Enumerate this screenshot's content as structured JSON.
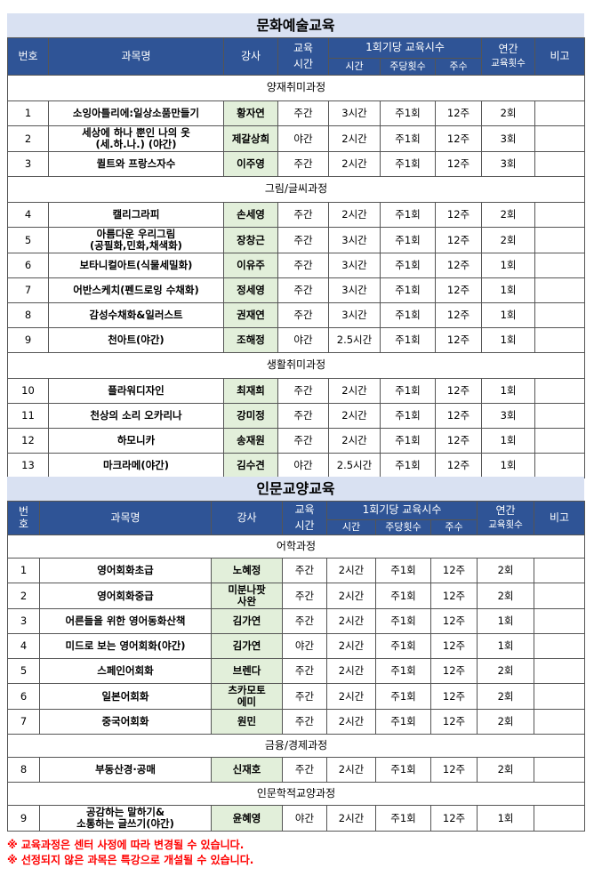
{
  "headers": {
    "no": "번호",
    "no_split": [
      "번",
      "호"
    ],
    "course": "과목명",
    "instructor": "강사",
    "edu_time": [
      "교육",
      "시간"
    ],
    "per_session": "1회기당 교육시수",
    "hours": "시간",
    "weekly": "주당횟수",
    "weeks": "주수",
    "annual": "연간",
    "annual_count": "교육횟수",
    "remarks": "비고"
  },
  "sections": [
    {
      "title": "문화예술교육",
      "groups": [
        {
          "category": "양재취미과정",
          "rows": [
            {
              "no": "1",
              "course": [
                "소잉아틀리에:일상소품만들기"
              ],
              "instructor": [
                "황자연"
              ],
              "time": "주간",
              "hours": "3시간",
              "weekly": "주1회",
              "weeks": "12주",
              "annual": "2회"
            },
            {
              "no": "2",
              "course": [
                "세상에 하나 뿐인 나의 옷",
                "(세.하.나.) (야간)"
              ],
              "instructor": [
                "제갈상희"
              ],
              "time": "야간",
              "hours": "2시간",
              "weekly": "주1회",
              "weeks": "12주",
              "annual": "3회"
            },
            {
              "no": "3",
              "course": [
                "퀼트와 프랑스자수"
              ],
              "instructor": [
                "이주영"
              ],
              "time": "주간",
              "hours": "2시간",
              "weekly": "주1회",
              "weeks": "12주",
              "annual": "3회"
            }
          ]
        },
        {
          "category": "그림/글씨과정",
          "rows": [
            {
              "no": "4",
              "course": [
                "캘리그라피"
              ],
              "instructor": [
                "손세영"
              ],
              "time": "주간",
              "hours": "2시간",
              "weekly": "주1회",
              "weeks": "12주",
              "annual": "2회"
            },
            {
              "no": "5",
              "course": [
                "아름다운 우리그림",
                "(공필화,민화,채색화)"
              ],
              "instructor": [
                "장창근"
              ],
              "time": "주간",
              "hours": "3시간",
              "weekly": "주1회",
              "weeks": "12주",
              "annual": "2회"
            },
            {
              "no": "6",
              "course": [
                "보타니컬아트(식물세밀화)"
              ],
              "instructor": [
                "이유주"
              ],
              "time": "주간",
              "hours": "3시간",
              "weekly": "주1회",
              "weeks": "12주",
              "annual": "1회"
            },
            {
              "no": "7",
              "course": [
                "어반스케치(펜드로잉 수채화)"
              ],
              "instructor": [
                "정세영"
              ],
              "time": "주간",
              "hours": "3시간",
              "weekly": "주1회",
              "weeks": "12주",
              "annual": "1회"
            },
            {
              "no": "8",
              "course": [
                "감성수채화&일러스트"
              ],
              "instructor": [
                "권재연"
              ],
              "time": "주간",
              "hours": "3시간",
              "weekly": "주1회",
              "weeks": "12주",
              "annual": "1회"
            },
            {
              "no": "9",
              "course": [
                "천아트(야간)"
              ],
              "instructor": [
                "조해정"
              ],
              "time": "야간",
              "hours": "2.5시간",
              "weekly": "주1회",
              "weeks": "12주",
              "annual": "1회"
            }
          ]
        },
        {
          "category": "생활취미과정",
          "rows": [
            {
              "no": "10",
              "course": [
                "플라워디자인"
              ],
              "instructor": [
                "최재희"
              ],
              "time": "주간",
              "hours": "2시간",
              "weekly": "주1회",
              "weeks": "12주",
              "annual": "1회"
            },
            {
              "no": "11",
              "course": [
                "천상의 소리 오카리나"
              ],
              "instructor": [
                "강미정"
              ],
              "time": "주간",
              "hours": "2시간",
              "weekly": "주1회",
              "weeks": "12주",
              "annual": "3회"
            },
            {
              "no": "12",
              "course": [
                "하모니카"
              ],
              "instructor": [
                "송재원"
              ],
              "time": "주간",
              "hours": "2시간",
              "weekly": "주1회",
              "weeks": "12주",
              "annual": "1회"
            },
            {
              "no": "13",
              "course": [
                "마크라메(야간)"
              ],
              "instructor": [
                "김수견"
              ],
              "time": "야간",
              "hours": "2.5시간",
              "weekly": "주1회",
              "weeks": "12주",
              "annual": "1회"
            }
          ]
        }
      ]
    },
    {
      "title": "인문교양교육",
      "groups": [
        {
          "category": "어학과정",
          "rows": [
            {
              "no": "1",
              "course": [
                "영어회화초급"
              ],
              "instructor": [
                "노혜정"
              ],
              "time": "주간",
              "hours": "2시간",
              "weekly": "주1회",
              "weeks": "12주",
              "annual": "2회"
            },
            {
              "no": "2",
              "course": [
                "영어회화중급"
              ],
              "instructor": [
                "미분나팟",
                "사완"
              ],
              "time": "주간",
              "hours": "2시간",
              "weekly": "주1회",
              "weeks": "12주",
              "annual": "2회"
            },
            {
              "no": "3",
              "course": [
                "어른들을 위한 영어동화산책"
              ],
              "instructor": [
                "김가연"
              ],
              "time": "주간",
              "hours": "2시간",
              "weekly": "주1회",
              "weeks": "12주",
              "annual": "1회"
            },
            {
              "no": "4",
              "course": [
                "미드로 보는 영어회화(야간)"
              ],
              "instructor": [
                "김가연"
              ],
              "time": "야간",
              "hours": "2시간",
              "weekly": "주1회",
              "weeks": "12주",
              "annual": "1회"
            },
            {
              "no": "5",
              "course": [
                "스페인어회화"
              ],
              "instructor": [
                "브렌다"
              ],
              "time": "주간",
              "hours": "2시간",
              "weekly": "주1회",
              "weeks": "12주",
              "annual": "2회"
            },
            {
              "no": "6",
              "course": [
                "일본어회화"
              ],
              "instructor": [
                "츠카모토",
                "에미"
              ],
              "time": "주간",
              "hours": "2시간",
              "weekly": "주1회",
              "weeks": "12주",
              "annual": "2회"
            },
            {
              "no": "7",
              "course": [
                "중국어회화"
              ],
              "instructor": [
                "원민"
              ],
              "time": "주간",
              "hours": "2시간",
              "weekly": "주1회",
              "weeks": "12주",
              "annual": "2회"
            }
          ]
        },
        {
          "category": "금융/경제과정",
          "rows": [
            {
              "no": "8",
              "course": [
                "부동산경·공매"
              ],
              "instructor": [
                "신재호"
              ],
              "time": "주간",
              "hours": "2시간",
              "weekly": "주1회",
              "weeks": "12주",
              "annual": "2회"
            }
          ]
        },
        {
          "category": "인문학적교양과정",
          "rows": [
            {
              "no": "9",
              "course": [
                "공감하는 말하기&",
                "소통하는 글쓰기(야간)"
              ],
              "instructor": [
                "윤혜영"
              ],
              "time": "야간",
              "hours": "2시간",
              "weekly": "주1회",
              "weeks": "12주",
              "annual": "1회"
            }
          ]
        }
      ]
    }
  ],
  "notes": [
    "※ 교육과정은 센터 사정에 따라 변경될 수 있습니다.",
    "※ 선정되지 않은 과목은 특강으로 개설될 수 있습니다."
  ]
}
